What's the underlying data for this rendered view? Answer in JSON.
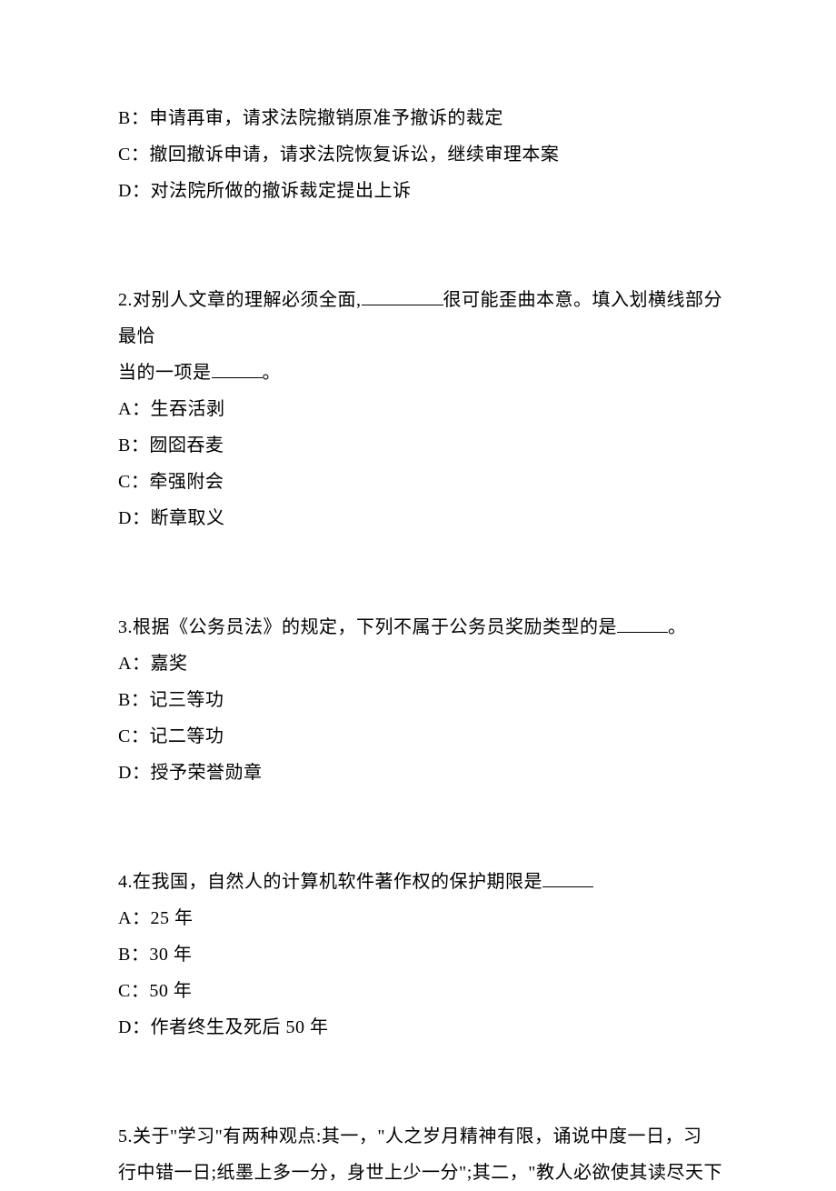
{
  "q1": {
    "optB": "B：申请再审，请求法院撤销原准予撤诉的裁定",
    "optC": "C：撤回撤诉申请，请求法院恢复诉讼，继续审理本案",
    "optD": "D：对法院所做的撤诉裁定提出上诉"
  },
  "q2": {
    "stem_p1": "2.对别人文章的理解必须全面,",
    "stem_p2": "很可能歪曲本意。填入划横线部分最恰",
    "stem_p3": "当的一项是",
    "stem_p4": "。",
    "optA": "A：生吞活剥",
    "optB": "B：囫囵吞麦",
    "optC": "C：牵强附会",
    "optD": "D：断章取义"
  },
  "q3": {
    "stem_p1": "3.根据《公务员法》的规定，下列不属于公务员奖励类型的是",
    "stem_p2": "。",
    "optA": "A：嘉奖",
    "optB": "B：记三等功",
    "optC": "C：记二等功",
    "optD": "D：授予荣誉勋章"
  },
  "q4": {
    "stem_p1": "4.在我国，自然人的计算机软件著作权的保护期限是",
    "optA": "A：25 年",
    "optB": "B：30 年",
    "optC": "C：50 年",
    "optD": "D：作者终生及死后 50 年"
  },
  "q5": {
    "line1": "5.关于\"学习\"有两种观点:其一，\"人之岁月精神有限，诵说中度一日，习",
    "line2": "行中错一日;纸墨上多一分，身世上少一分\";其二，\"教人必欲使其读尽天下"
  }
}
